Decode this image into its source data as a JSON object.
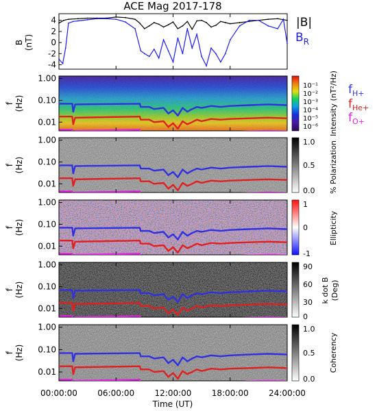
{
  "title": "ACE Mag 2017-178",
  "xlabel": "Time (UT)",
  "x_ticks": [
    "00:00:00",
    "06:00:00",
    "12:00:00",
    "18:00:00",
    "24:00:00"
  ],
  "legend_b": {
    "mag": "|B|",
    "br": "B",
    "br_sub": "R"
  },
  "legend_f": [
    {
      "main": "f",
      "sub": "H+",
      "color": "#3030e0"
    },
    {
      "main": "f",
      "sub": "He+",
      "color": "#e02020"
    },
    {
      "main": "f",
      "sub": "O+",
      "color": "#e020e0"
    }
  ],
  "f_ylabel": {
    "f": "f",
    "unit": "(Hz)"
  },
  "f_ticks": [
    "1.00",
    "0.10",
    "0.01"
  ],
  "panels": {
    "b": {
      "ylabel_top": "B",
      "ylabel_unit": "(nT)",
      "ticks": [
        "4",
        "2",
        "0",
        "-2",
        "-4"
      ]
    },
    "intensity": {
      "cb_label": "Intensity (nT²/Hz)",
      "cb_ticks": [
        "10⁻¹",
        "10⁻²",
        "10⁻³",
        "10⁻⁴",
        "10⁻⁵",
        "10⁻⁶"
      ]
    },
    "polarization": {
      "cb_label": "% Polarization",
      "cb_ticks": [
        "1.0",
        "0.5",
        "0.0"
      ]
    },
    "ellipticity": {
      "cb_label": "Ellipticity",
      "cb_ticks": [
        "1",
        "0",
        "-1"
      ]
    },
    "kdotb": {
      "cb_label": "k dot B",
      "cb_label2": "(Deg)",
      "cb_ticks": [
        "90",
        "60",
        "30",
        "0"
      ]
    },
    "coherency": {
      "cb_label": "Coherency",
      "cb_ticks": [
        "1.0",
        "0.5",
        "0.0"
      ]
    }
  },
  "chart_data": [
    {
      "type": "line",
      "title": "ACE Mag 2017-178",
      "xlabel": "Time (UT)",
      "ylabel": "B (nT)",
      "xlim": [
        0,
        24
      ],
      "ylim": [
        -4.8,
        5.2
      ],
      "series": [
        {
          "name": "|B|",
          "color": "#000000",
          "x": [
            0,
            0.5,
            1,
            2,
            3,
            4,
            5,
            6,
            7,
            8,
            8.5,
            9,
            9.5,
            10,
            10.5,
            11,
            11.5,
            12,
            12.5,
            13,
            13.5,
            14,
            14.5,
            15,
            15.5,
            16,
            16.5,
            17,
            17.5,
            18,
            19,
            20,
            21,
            22,
            23,
            24
          ],
          "y": [
            3.5,
            4.0,
            4.2,
            4.3,
            4.4,
            4.4,
            4.4,
            4.6,
            4.5,
            4.2,
            3.5,
            2.5,
            3.0,
            3.6,
            3.3,
            2.8,
            3.2,
            3.7,
            2.5,
            3.0,
            3.8,
            2.4,
            3.9,
            4.0,
            3.6,
            2.8,
            3.1,
            3.8,
            3.6,
            3.4,
            3.6,
            3.8,
            4.0,
            4.2,
            4.3,
            4.0
          ]
        },
        {
          "name": "BR",
          "color": "#1a1aff",
          "x": [
            0,
            0.4,
            0.7,
            1,
            1.5,
            2,
            3,
            4,
            5,
            6,
            7,
            8,
            8.6,
            9,
            9.5,
            10,
            10.5,
            11,
            11.5,
            12,
            12.5,
            13,
            13.5,
            14,
            14.5,
            15,
            15.5,
            16,
            16.5,
            17,
            17.5,
            18,
            19,
            20,
            21,
            22,
            23,
            23.6,
            24
          ],
          "y": [
            -3.0,
            -3.8,
            -1.0,
            3.5,
            3.8,
            3.9,
            4.1,
            4.3,
            4.3,
            4.2,
            3.7,
            2.5,
            -1.5,
            -2.0,
            -2.5,
            -1.2,
            -2.8,
            0.5,
            -1.5,
            -3.5,
            0.8,
            -2.0,
            2.5,
            -1.0,
            1.5,
            -2.5,
            -4.2,
            -1.0,
            -2.0,
            -3.5,
            -2.0,
            0.5,
            3.0,
            4.0,
            4.0,
            3.0,
            2.5,
            4.2,
            -0.2
          ]
        }
      ]
    },
    {
      "type": "heatmap",
      "title": "",
      "xlabel": "",
      "ylabel": "f (Hz)",
      "y_scale": "log",
      "xlim": [
        0,
        24
      ],
      "ylim": [
        0.004,
        1.3
      ],
      "colorbar_label": "Intensity (nT²/Hz)",
      "colorbar_range": [
        1e-06,
        0.1
      ],
      "series": [
        {
          "name": "fH+",
          "color": "#3030e0",
          "x": [
            0,
            1.4,
            1.5,
            1.7,
            8.5,
            8.6,
            9.5,
            10,
            11,
            11.5,
            12,
            12.5,
            13,
            13.5,
            14,
            14.5,
            15,
            16,
            17,
            18,
            20,
            22,
            24
          ],
          "y": [
            0.07,
            0.07,
            0.03,
            0.065,
            0.07,
            0.05,
            0.05,
            0.04,
            0.045,
            0.025,
            0.035,
            0.02,
            0.045,
            0.03,
            0.04,
            0.05,
            0.045,
            0.055,
            0.05,
            0.055,
            0.06,
            0.065,
            0.06
          ]
        },
        {
          "name": "fHe+",
          "color": "#e02020",
          "x": [
            0,
            1.4,
            1.5,
            1.7,
            8.5,
            8.6,
            9.5,
            10,
            11,
            11.5,
            12,
            12.5,
            13,
            13.5,
            14,
            14.5,
            15,
            16,
            17,
            18,
            20,
            22,
            24
          ],
          "y": [
            0.018,
            0.018,
            0.008,
            0.016,
            0.018,
            0.013,
            0.013,
            0.01,
            0.011,
            0.006,
            0.009,
            0.005,
            0.011,
            0.008,
            0.01,
            0.013,
            0.011,
            0.014,
            0.013,
            0.014,
            0.015,
            0.016,
            0.015
          ]
        },
        {
          "name": "fO+",
          "color": "#e020e0",
          "x": [
            0,
            1.4,
            1.5,
            1.7,
            8.5,
            8.6,
            9.5,
            10,
            11,
            11.5,
            12,
            12.5,
            13,
            13.5,
            14,
            14.5,
            15,
            16,
            17,
            18,
            20,
            22,
            24
          ],
          "y": [
            0.0045,
            0.0045,
            0.002,
            0.004,
            0.0045,
            0.0033,
            0.0033,
            0.0025,
            0.0028,
            0.0016,
            0.0023,
            0.0013,
            0.0028,
            0.002,
            0.0025,
            0.0033,
            0.0028,
            0.0035,
            0.0033,
            0.0035,
            0.0038,
            0.004,
            0.0038
          ]
        }
      ]
    },
    {
      "type": "heatmap",
      "ylabel": "f (Hz)",
      "y_scale": "log",
      "xlim": [
        0,
        24
      ],
      "ylim": [
        0.004,
        1.3
      ],
      "colorbar_label": "% Polarization",
      "colorbar_range": [
        0,
        1
      ]
    },
    {
      "type": "heatmap",
      "ylabel": "f (Hz)",
      "y_scale": "log",
      "xlim": [
        0,
        24
      ],
      "ylim": [
        0.004,
        1.3
      ],
      "colorbar_label": "Ellipticity",
      "colorbar_range": [
        -1,
        1
      ]
    },
    {
      "type": "heatmap",
      "ylabel": "f (Hz)",
      "y_scale": "log",
      "xlim": [
        0,
        24
      ],
      "ylim": [
        0.004,
        1.3
      ],
      "colorbar_label": "k dot B (Deg)",
      "colorbar_range": [
        0,
        90
      ]
    },
    {
      "type": "heatmap",
      "ylabel": "f (Hz)",
      "y_scale": "log",
      "xlim": [
        0,
        24
      ],
      "ylim": [
        0.004,
        1.3
      ],
      "colorbar_label": "Coherency",
      "colorbar_range": [
        0,
        1
      ]
    }
  ]
}
